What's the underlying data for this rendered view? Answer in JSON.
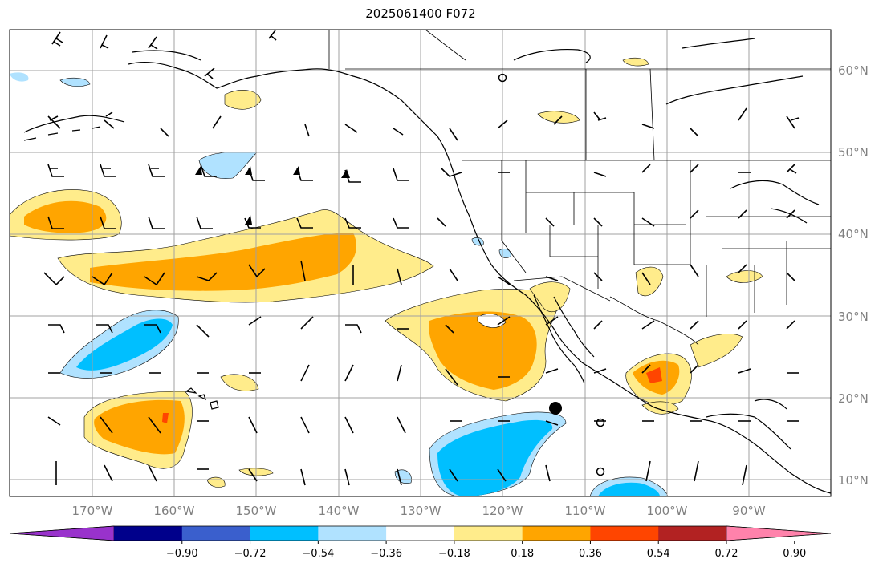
{
  "title": "2025061400 F072",
  "map": {
    "lat_labels": [
      "10°N",
      "20°N",
      "30°N",
      "40°N",
      "50°N",
      "60°N"
    ],
    "lon_labels": [
      "170°W",
      "160°W",
      "150°W",
      "140°W",
      "130°W",
      "120°W",
      "110°W",
      "100°W",
      "90°W"
    ]
  },
  "colorbar": {
    "labels": [
      "−0.90",
      "−0.72",
      "−0.54",
      "−0.36",
      "−0.18",
      "0.18",
      "0.36",
      "0.54",
      "0.72",
      "0.90"
    ],
    "colors": [
      "#9932cc",
      "#00008b",
      "#3a5fcd",
      "#00bfff",
      "#b0e2ff",
      "#ffffff",
      "#ffec8b",
      "#ffa500",
      "#ff4500",
      "#b22222",
      "#ff82ab"
    ]
  },
  "colors": {
    "light_blue": "#b0e2ff",
    "sky_blue": "#00bfff",
    "light_yellow": "#ffec8b",
    "orange": "#ffa500",
    "red_orange": "#ff4500",
    "gridline": "#a0a0a0"
  }
}
